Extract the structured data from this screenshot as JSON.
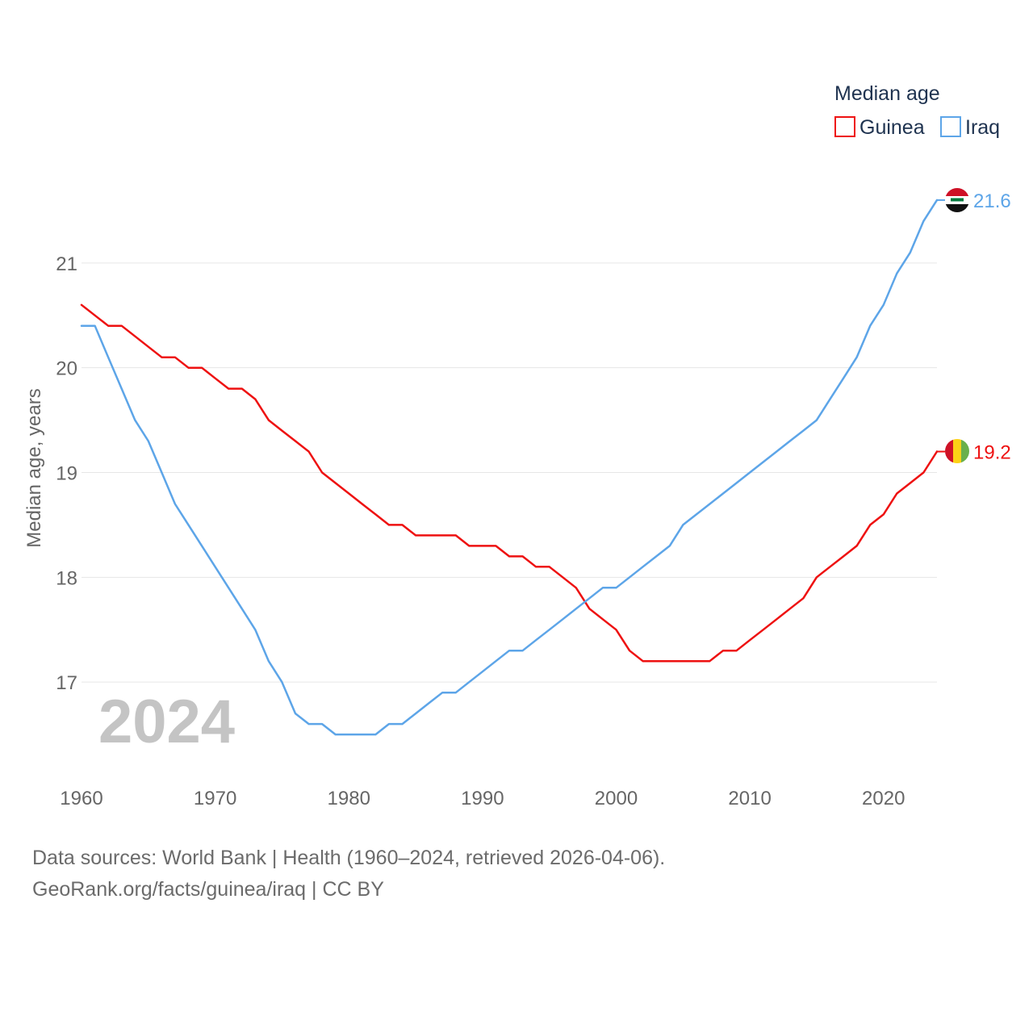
{
  "chart_data": {
    "type": "line",
    "legend_title": "Median age",
    "ylabel": "Median age, years",
    "xlabel": "",
    "xlim": [
      1960,
      2024
    ],
    "ylim": [
      16.0,
      22.0
    ],
    "x_ticks": [
      1960,
      1970,
      1980,
      1990,
      2000,
      2010,
      2020
    ],
    "y_ticks": [
      17,
      18,
      19,
      20,
      21
    ],
    "grid": true,
    "watermark_year": "2024",
    "legend_position": "top-right",
    "x": [
      1960,
      1961,
      1962,
      1963,
      1964,
      1965,
      1966,
      1967,
      1968,
      1969,
      1970,
      1971,
      1972,
      1973,
      1974,
      1975,
      1976,
      1977,
      1978,
      1979,
      1980,
      1981,
      1982,
      1983,
      1984,
      1985,
      1986,
      1987,
      1988,
      1989,
      1990,
      1991,
      1992,
      1993,
      1994,
      1995,
      1996,
      1997,
      1998,
      1999,
      2000,
      2001,
      2002,
      2003,
      2004,
      2005,
      2006,
      2007,
      2008,
      2009,
      2010,
      2011,
      2012,
      2013,
      2014,
      2015,
      2016,
      2017,
      2018,
      2019,
      2020,
      2021,
      2022,
      2023,
      2024
    ],
    "series": [
      {
        "name": "Guinea",
        "color": "#ee1111",
        "end_label": "19.2",
        "flag": "guinea-flag",
        "values": [
          20.6,
          20.5,
          20.4,
          20.4,
          20.3,
          20.2,
          20.1,
          20.1,
          20.0,
          20.0,
          19.9,
          19.8,
          19.8,
          19.7,
          19.5,
          19.4,
          19.3,
          19.2,
          19.0,
          18.9,
          18.8,
          18.7,
          18.6,
          18.5,
          18.5,
          18.4,
          18.4,
          18.4,
          18.4,
          18.3,
          18.3,
          18.3,
          18.2,
          18.2,
          18.1,
          18.1,
          18.0,
          17.9,
          17.7,
          17.6,
          17.5,
          17.3,
          17.2,
          17.2,
          17.2,
          17.2,
          17.2,
          17.2,
          17.3,
          17.3,
          17.4,
          17.5,
          17.6,
          17.7,
          17.8,
          18.0,
          18.1,
          18.2,
          18.3,
          18.5,
          18.6,
          18.8,
          18.9,
          19.0,
          19.2
        ]
      },
      {
        "name": "Iraq",
        "color": "#5da5e8",
        "end_label": "21.6",
        "flag": "iraq-flag",
        "values": [
          20.4,
          20.4,
          20.1,
          19.8,
          19.5,
          19.3,
          19.0,
          18.7,
          18.5,
          18.3,
          18.1,
          17.9,
          17.7,
          17.5,
          17.2,
          17.0,
          16.7,
          16.6,
          16.6,
          16.5,
          16.5,
          16.5,
          16.5,
          16.6,
          16.6,
          16.7,
          16.8,
          16.9,
          16.9,
          17.0,
          17.1,
          17.2,
          17.3,
          17.3,
          17.4,
          17.5,
          17.6,
          17.7,
          17.8,
          17.9,
          17.9,
          18.0,
          18.1,
          18.2,
          18.3,
          18.5,
          18.6,
          18.7,
          18.8,
          18.9,
          19.0,
          19.1,
          19.2,
          19.3,
          19.4,
          19.5,
          19.7,
          19.9,
          20.1,
          20.4,
          20.6,
          20.9,
          21.1,
          21.4,
          21.6
        ]
      }
    ]
  },
  "footer": {
    "line1": "Data sources: World Bank | Health (1960–2024, retrieved 2026-04-06).",
    "line2": "GeoRank.org/facts/guinea/iraq | CC BY"
  }
}
